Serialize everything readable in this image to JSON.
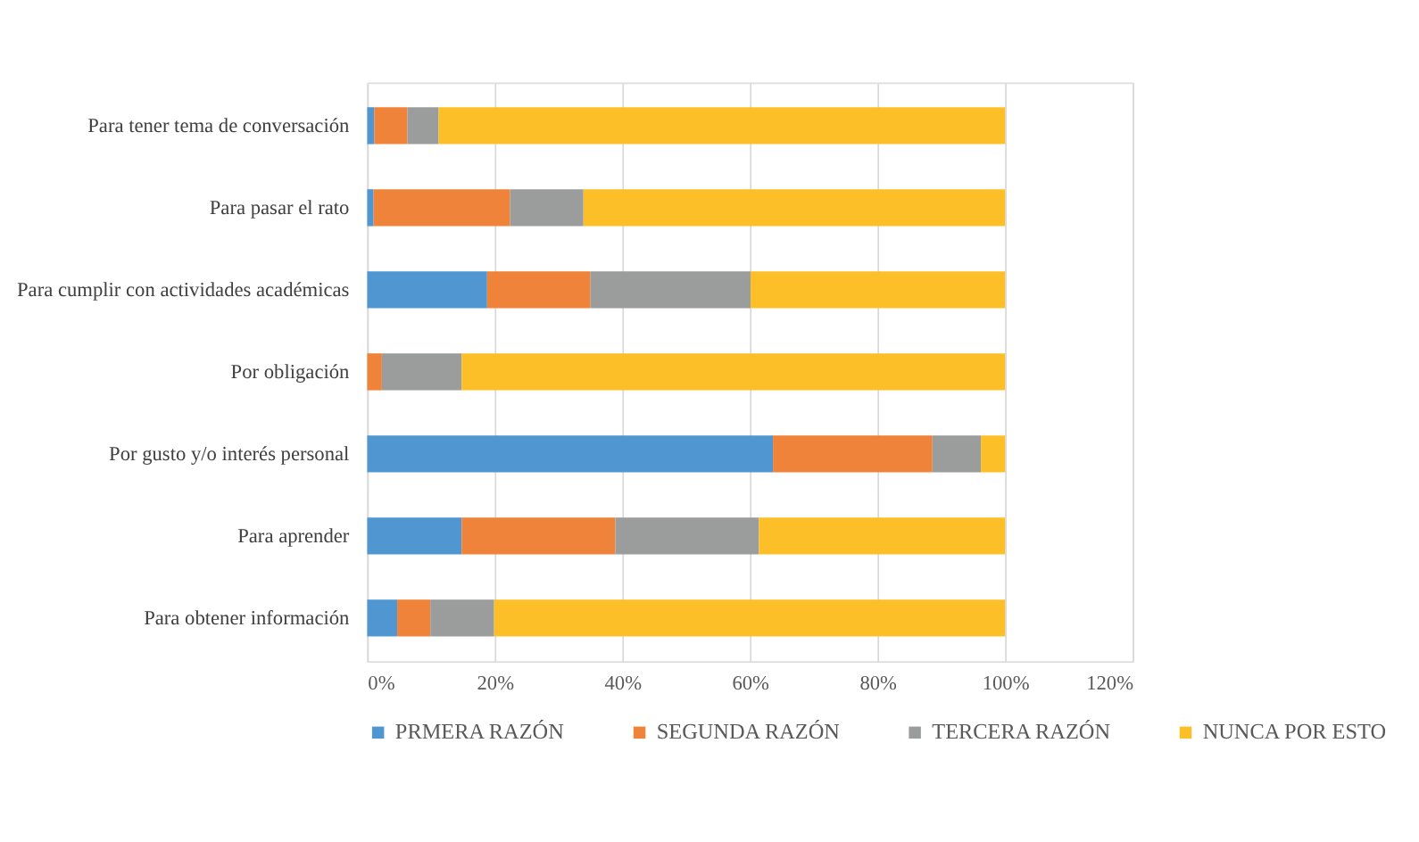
{
  "chart_data": {
    "type": "bar",
    "orientation": "horizontal",
    "stacked": true,
    "categories": [
      "Para tener tema de conversación",
      "Para pasar el rato",
      "Para cumplir con actividades académicas",
      "Por obligación",
      "Por gusto y/o interés personal",
      "Para aprender",
      "Para obtener información"
    ],
    "series": [
      {
        "name": "PRMERA RAZÓN",
        "color": "#5097d2",
        "values": [
          1.1,
          1.0,
          18.8,
          0,
          63.6,
          14.8,
          4.7
        ]
      },
      {
        "name": "SEGUNDA RAZÓN",
        "color": "#f0833a",
        "values": [
          5.2,
          21.4,
          16.2,
          2.3,
          25.0,
          24.1,
          5.2
        ]
      },
      {
        "name": "TERCERA RAZÓN",
        "color": "#9a9d9c",
        "values": [
          4.9,
          11.5,
          25.1,
          12.5,
          7.6,
          22.5,
          10.0
        ]
      },
      {
        "name": "NUNCA POR ESTO",
        "color": "#fdbf28",
        "values": [
          88.8,
          66.1,
          39.9,
          85.2,
          3.8,
          38.6,
          80.1
        ]
      }
    ],
    "xlim": [
      0,
      120
    ],
    "xticks": [
      {
        "value": 0,
        "label": "0%"
      },
      {
        "value": 20,
        "label": "20%"
      },
      {
        "value": 40,
        "label": "40%"
      },
      {
        "value": 60,
        "label": "60%"
      },
      {
        "value": 80,
        "label": "80%"
      },
      {
        "value": 100,
        "label": "100%"
      },
      {
        "value": 120,
        "label": "120%"
      }
    ],
    "grid": "x",
    "legend": "bottom"
  }
}
